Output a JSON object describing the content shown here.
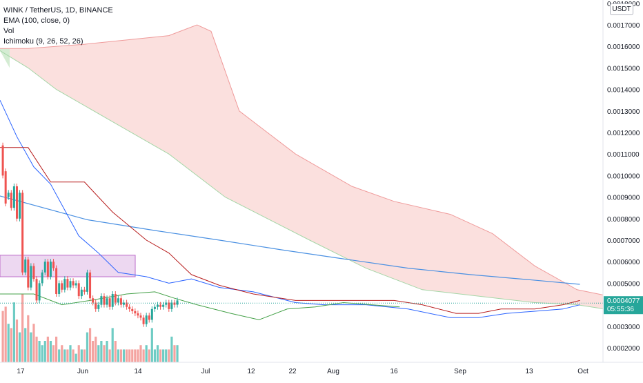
{
  "legend": {
    "symbol": "WINK / TetherUS, 1D, BINANCE",
    "ema": "EMA (100, close, 0)",
    "vol": "Vol",
    "ichimoku": "Ichimoku (9, 26, 52, 26)"
  },
  "currency_button": "USDT",
  "price_tag": {
    "price": "0.0004077",
    "countdown": "05:55:36"
  },
  "colors": {
    "up": "#26a69a",
    "down": "#ef5350",
    "vol_up": "#6fccc4",
    "vol_down": "#f4a3a0",
    "ema": "#4a90e2",
    "conversion": "#2962ff",
    "base": "#b71c1c",
    "lagging": "#43a047",
    "cloud_bear": "#f9d5d3",
    "cloud_bull": "#d4ecd3",
    "box": "#e1bee7"
  },
  "chart_data": {
    "type": "candlestick",
    "yaxis_ticks": [
      "0.0002000",
      "0.0003000",
      "0.0004000",
      "0.0005000",
      "0.0006000",
      "0.0007000",
      "0.0008000",
      "0.0009000",
      "0.0010000",
      "0.0011000",
      "0.0012000",
      "0.0013000",
      "0.0014000",
      "0.0015000",
      "0.0016000",
      "0.0017000"
    ],
    "yaxis_partial_top": "0.0018000",
    "xaxis_ticks": [
      "17",
      "Jun",
      "14",
      "Jul",
      "12",
      "22",
      "Aug",
      "16",
      "Sep",
      "13",
      "Oct"
    ],
    "ylim": [
      0.00015,
      0.00181
    ],
    "current_price": 0.0004077,
    "series": {
      "ema": [
        [
          0.000905,
          0
        ],
        [
          0.000795,
          31
        ],
        [
          0.000745,
          55
        ],
        [
          0.0007,
          78
        ],
        [
          0.000655,
          100
        ],
        [
          0.000613,
          122
        ],
        [
          0.00057,
          145
        ],
        [
          0.00054,
          167
        ],
        [
          0.000515,
          189
        ],
        [
          0.000495,
          206
        ]
      ],
      "conversion": [
        [
          0.00135,
          0
        ],
        [
          0.00118,
          6
        ],
        [
          0.00104,
          12
        ],
        [
          0.00096,
          18
        ],
        [
          0.00072,
          28
        ],
        [
          0.00064,
          35
        ],
        [
          0.00055,
          42
        ],
        [
          0.00053,
          52
        ],
        [
          0.0005,
          60
        ],
        [
          0.00052,
          68
        ],
        [
          0.00048,
          78
        ],
        [
          0.00046,
          90
        ],
        [
          0.00041,
          105
        ],
        [
          0.0004,
          115
        ],
        [
          0.0004,
          130
        ],
        [
          0.00038,
          145
        ],
        [
          0.00034,
          160
        ],
        [
          0.00034,
          170
        ],
        [
          0.00036,
          180
        ],
        [
          0.00037,
          190
        ],
        [
          0.00038,
          200
        ],
        [
          0.0004,
          206
        ]
      ],
      "base": [
        [
          0.00113,
          0
        ],
        [
          0.00113,
          10
        ],
        [
          0.00097,
          18
        ],
        [
          0.00097,
          30
        ],
        [
          0.00083,
          40
        ],
        [
          0.0007,
          52
        ],
        [
          0.00064,
          60
        ],
        [
          0.00054,
          68
        ],
        [
          0.00049,
          78
        ],
        [
          0.00045,
          90
        ],
        [
          0.00042,
          105
        ],
        [
          0.00042,
          140
        ],
        [
          0.0004,
          150
        ],
        [
          0.00036,
          162
        ],
        [
          0.00036,
          170
        ],
        [
          0.00038,
          178
        ],
        [
          0.00038,
          190
        ],
        [
          0.0004,
          200
        ],
        [
          0.00042,
          206
        ]
      ],
      "lagging": [
        [
          0.00045,
          0
        ],
        [
          0.00045,
          12
        ],
        [
          0.0004,
          22
        ],
        [
          0.00042,
          32
        ],
        [
          0.00045,
          45
        ],
        [
          0.00046,
          55
        ],
        [
          0.00043,
          62
        ],
        [
          0.0004,
          70
        ],
        [
          0.00036,
          82
        ],
        [
          0.00033,
          92
        ],
        [
          0.00038,
          102
        ],
        [
          0.00039,
          112
        ],
        [
          0.00041,
          122
        ],
        [
          0.0004,
          132
        ],
        [
          0.00039,
          142
        ]
      ],
      "cloud_a": [
        [
          0.00159,
          0
        ],
        [
          0.00159,
          10
        ],
        [
          0.00161,
          30
        ],
        [
          0.00165,
          60
        ],
        [
          0.0017,
          70
        ],
        [
          0.00167,
          75
        ],
        [
          0.0013,
          85
        ],
        [
          0.0011,
          105
        ],
        [
          0.00095,
          125
        ],
        [
          0.00088,
          140
        ],
        [
          0.00082,
          160
        ],
        [
          0.00073,
          175
        ],
        [
          0.00058,
          190
        ],
        [
          0.00047,
          205
        ],
        [
          0.00043,
          220
        ],
        [
          0.00043,
          230
        ],
        [
          0.00043,
          253
        ]
      ],
      "cloud_b": [
        [
          0.00158,
          0
        ],
        [
          0.0015,
          10
        ],
        [
          0.0014,
          20
        ],
        [
          0.00125,
          40
        ],
        [
          0.0011,
          60
        ],
        [
          0.0009,
          80
        ],
        [
          0.0008,
          95
        ],
        [
          0.0007,
          110
        ],
        [
          0.00057,
          130
        ],
        [
          0.00047,
          150
        ],
        [
          0.00044,
          170
        ],
        [
          0.00041,
          190
        ],
        [
          0.0004,
          205
        ],
        [
          0.00037,
          220
        ],
        [
          0.00036,
          235
        ],
        [
          0.00038,
          253
        ]
      ],
      "candles": [
        [
          0.00114,
          0.001,
          1,
          1.2
        ],
        [
          0.00102,
          0.00087,
          2,
          1.3
        ],
        [
          0.0009,
          0.00092,
          3,
          0.9
        ],
        [
          0.00092,
          0.00085,
          4,
          0.8
        ],
        [
          0.00085,
          0.00095,
          5,
          1.4
        ],
        [
          0.00095,
          0.0008,
          6,
          1.0
        ],
        [
          0.0008,
          0.00092,
          7,
          0.7
        ],
        [
          0.00092,
          0.00055,
          8,
          1.6
        ],
        [
          0.00055,
          0.00061,
          9,
          0.8
        ],
        [
          0.00061,
          0.00048,
          10,
          1.1
        ],
        [
          0.00048,
          0.00058,
          11,
          0.7
        ],
        [
          0.00058,
          0.00052,
          12,
          0.9
        ],
        [
          0.00052,
          0.00042,
          13,
          0.6
        ],
        [
          0.00042,
          0.0005,
          14,
          0.5
        ],
        [
          0.0005,
          0.00055,
          15,
          0.4
        ],
        [
          0.00055,
          0.0006,
          16,
          0.5
        ],
        [
          0.0006,
          0.00053,
          17,
          0.6
        ],
        [
          0.00053,
          0.0006,
          18,
          0.5
        ],
        [
          0.0006,
          0.00057,
          19,
          0.4
        ],
        [
          0.00057,
          0.00045,
          20,
          0.6
        ],
        [
          0.00045,
          0.0005,
          21,
          0.3
        ],
        [
          0.0005,
          0.00047,
          22,
          0.4
        ],
        [
          0.00047,
          0.00052,
          23,
          0.3
        ],
        [
          0.00052,
          0.00048,
          24,
          0.3
        ],
        [
          0.00048,
          0.00051,
          25,
          0.4
        ],
        [
          0.00051,
          0.00049,
          26,
          0.3
        ],
        [
          0.00049,
          0.0005,
          27,
          0.2
        ],
        [
          0.0005,
          0.00044,
          28,
          0.4
        ],
        [
          0.00044,
          0.00047,
          29,
          0.3
        ],
        [
          0.00047,
          0.00046,
          30,
          0.3
        ],
        [
          0.00046,
          0.00055,
          31,
          0.7
        ],
        [
          0.00055,
          0.00043,
          32,
          0.8
        ],
        [
          0.00043,
          0.00041,
          33,
          0.5
        ],
        [
          0.00041,
          0.00038,
          34,
          0.6
        ],
        [
          0.00038,
          0.0004,
          35,
          0.4
        ],
        [
          0.0004,
          0.00044,
          36,
          0.5
        ],
        [
          0.00044,
          0.0004,
          37,
          0.4
        ],
        [
          0.0004,
          0.00043,
          38,
          0.5
        ],
        [
          0.00043,
          0.00039,
          39,
          0.3
        ],
        [
          0.00039,
          0.00045,
          40,
          0.8
        ],
        [
          0.00045,
          0.00041,
          41,
          0.5
        ],
        [
          0.00041,
          0.00043,
          42,
          0.3
        ],
        [
          0.00043,
          0.0004,
          43,
          0.3
        ],
        [
          0.0004,
          0.00041,
          44,
          0.3
        ],
        [
          0.00041,
          0.00039,
          45,
          0.3
        ],
        [
          0.00039,
          0.00038,
          46,
          0.3
        ],
        [
          0.00038,
          0.00037,
          47,
          0.3
        ],
        [
          0.00037,
          0.00036,
          48,
          0.3
        ],
        [
          0.00036,
          0.00035,
          49,
          0.3
        ],
        [
          0.00035,
          0.00034,
          50,
          0.4
        ],
        [
          0.00034,
          0.00031,
          51,
          0.3
        ],
        [
          0.00031,
          0.00035,
          52,
          0.4
        ],
        [
          0.00035,
          0.00033,
          53,
          0.3
        ],
        [
          0.00033,
          0.00038,
          54,
          0.8
        ],
        [
          0.00038,
          0.00039,
          55,
          0.3
        ],
        [
          0.00039,
          0.0004,
          56,
          0.4
        ],
        [
          0.0004,
          0.00039,
          57,
          0.3
        ],
        [
          0.00039,
          0.0004,
          58,
          0.3
        ],
        [
          0.0004,
          0.00041,
          59,
          0.3
        ],
        [
          0.00041,
          0.00038,
          60,
          0.3
        ],
        [
          0.00038,
          0.00041,
          61,
          0.6
        ],
        [
          0.00041,
          0.0004,
          62,
          0.4
        ],
        [
          0.0004,
          0.00042,
          63,
          0.4
        ]
      ],
      "volume": []
    },
    "purple_box": {
      "top": 0.00063,
      "bottom": 0.00053
    }
  }
}
